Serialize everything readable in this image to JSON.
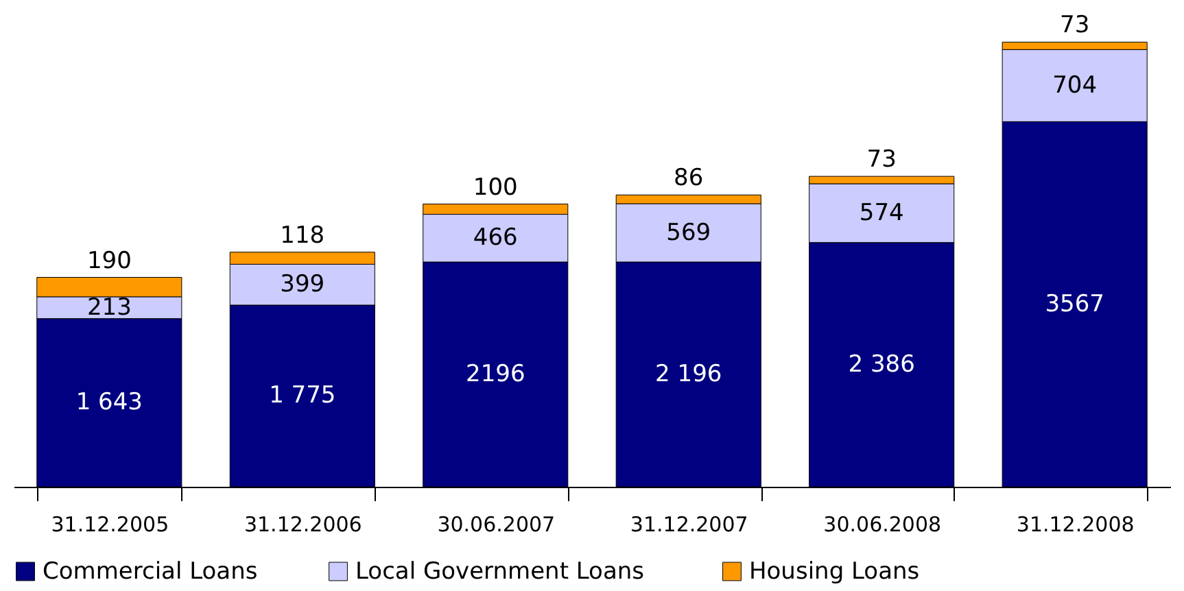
{
  "chart_data": {
    "type": "bar",
    "stacked": true,
    "legend": "bottom",
    "categories": [
      "31.12.2005",
      "31.12.2006",
      "30.06.2007",
      "31.12.2007",
      "30.06.2008",
      "31.12.2008"
    ],
    "series": [
      {
        "name": "Commercial Loans",
        "color": "#000080",
        "values": [
          1643,
          1775,
          2196,
          2196,
          2386,
          3567
        ],
        "value_labels": [
          "1 643",
          "1 775",
          "2196",
          "2 196",
          "2 386",
          "3567"
        ]
      },
      {
        "name": "Local Government  Loans",
        "color": "#ccccff",
        "values": [
          213,
          399,
          466,
          569,
          574,
          704
        ],
        "value_labels": [
          "213",
          "399",
          "466",
          "569",
          "574",
          "704"
        ]
      },
      {
        "name": "Housing Loans",
        "color": "#ff9900",
        "values": [
          190,
          118,
          100,
          86,
          73,
          73
        ],
        "value_labels": [
          "190",
          "118",
          "100",
          "86",
          "73",
          "73"
        ]
      }
    ]
  }
}
